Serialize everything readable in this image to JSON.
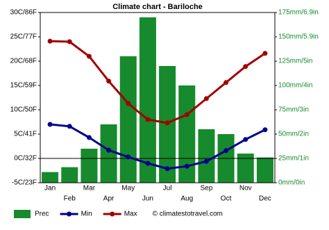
{
  "chart_data": {
    "type": "bar-line",
    "title": "Climate chart - Bariloche",
    "categories": [
      "Jan",
      "Feb",
      "Mar",
      "Apr",
      "May",
      "Jun",
      "Jul",
      "Aug",
      "Sep",
      "Oct",
      "Nov",
      "Dec"
    ],
    "series": [
      {
        "name": "Prec",
        "type": "bar",
        "axis": "y2",
        "color": "#168a2c",
        "values": [
          11,
          16,
          35,
          60,
          130,
          170,
          120,
          100,
          55,
          50,
          30,
          26
        ]
      },
      {
        "name": "Min",
        "type": "line",
        "color": "#00008b",
        "values": [
          7.0,
          6.6,
          4.3,
          1.7,
          0.3,
          -1.0,
          -2.1,
          -1.6,
          -0.6,
          1.6,
          3.9,
          5.9
        ]
      },
      {
        "name": "Max",
        "type": "line",
        "color": "#a00000",
        "values": [
          24.1,
          24.0,
          21.0,
          15.9,
          11.3,
          8.0,
          7.3,
          9.0,
          12.3,
          15.6,
          18.9,
          21.6
        ]
      }
    ],
    "ylim": [
      -5,
      30
    ],
    "yticks": [
      {
        "value": -5,
        "label": "-5C/23F"
      },
      {
        "value": 0,
        "label": "0C/32F"
      },
      {
        "value": 5,
        "label": "5C/41F"
      },
      {
        "value": 10,
        "label": "10C/50F"
      },
      {
        "value": 15,
        "label": "15C/59F"
      },
      {
        "value": 20,
        "label": "20C/68F"
      },
      {
        "value": 25,
        "label": "25C/77F"
      },
      {
        "value": 30,
        "label": "30C/86F"
      }
    ],
    "y2lim": [
      0,
      175
    ],
    "y2ticks": [
      {
        "value": 0,
        "label": "0mm/0in"
      },
      {
        "value": 25,
        "label": "25mm/1in"
      },
      {
        "value": 50,
        "label": "50mm/2in"
      },
      {
        "value": 75,
        "label": "75mm/3in"
      },
      {
        "value": 100,
        "label": "100mm/4in"
      },
      {
        "value": 125,
        "label": "125mm/5in"
      },
      {
        "value": 150,
        "label": "150mm/5.9in"
      },
      {
        "value": 175,
        "label": "175mm/6.9in"
      }
    ],
    "y2color": "#168a2c",
    "legend": "bottom",
    "credit": "© climatestotravel.com"
  }
}
